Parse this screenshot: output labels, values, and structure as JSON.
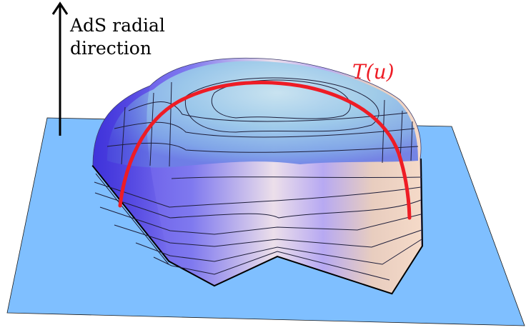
{
  "axis_label": {
    "line1": "AdS radial",
    "line2": "direction"
  },
  "curve_label": "T(u)",
  "colors": {
    "base_plane": "#7fbfff",
    "curve": "#ee1c25",
    "surface_light": "#f2d8cc",
    "surface_dark": "#4a3fe0",
    "edge": "#000000"
  }
}
